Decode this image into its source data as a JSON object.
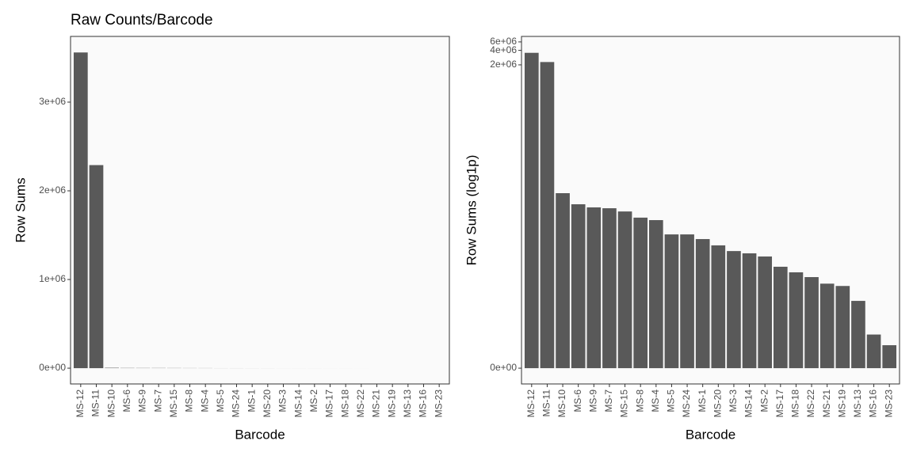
{
  "chart_data": [
    {
      "type": "bar",
      "title": "Raw Counts/Barcode",
      "x_label": "Barcode",
      "y_label": "Row Sums",
      "categories": [
        "MS-12",
        "MS-11",
        "MS-10",
        "MS-6",
        "MS-9",
        "MS-7",
        "MS-15",
        "MS-8",
        "MS-4",
        "MS-5",
        "MS-24",
        "MS-1",
        "MS-20",
        "MS-3",
        "MS-14",
        "MS-2",
        "MS-17",
        "MS-18",
        "MS-22",
        "MS-21",
        "MS-19",
        "MS-13",
        "MS-16",
        "MS-23"
      ],
      "values": [
        3560000,
        2290000,
        4320,
        2540,
        2190,
        2100,
        1800,
        1340,
        1190,
        600,
        600,
        480,
        355,
        270,
        242,
        208,
        127,
        97,
        77,
        56,
        50,
        24,
        4,
        2
      ],
      "color": "#595959",
      "ylim": [
        -178000,
        3741000
      ],
      "yticks": [
        {
          "value": 0,
          "label": "0e+00"
        },
        {
          "value": 1000000,
          "label": "1e+06"
        },
        {
          "value": 2000000,
          "label": "2e+06"
        },
        {
          "value": 3000000,
          "label": "3e+06"
        }
      ],
      "grid": false
    },
    {
      "type": "bar",
      "x_label": "Barcode",
      "y_label": "Row Sums (log1p)",
      "yscale": "log1p",
      "categories": [
        "MS-12",
        "MS-11",
        "MS-10",
        "MS-6",
        "MS-9",
        "MS-7",
        "MS-15",
        "MS-8",
        "MS-4",
        "MS-5",
        "MS-24",
        "MS-1",
        "MS-20",
        "MS-3",
        "MS-14",
        "MS-2",
        "MS-17",
        "MS-18",
        "MS-22",
        "MS-21",
        "MS-19",
        "MS-13",
        "MS-16",
        "MS-23"
      ],
      "values": [
        3560000,
        2290000,
        4320,
        2540,
        2190,
        2100,
        1800,
        1340,
        1190,
        600,
        600,
        480,
        355,
        270,
        242,
        208,
        127,
        97,
        77,
        56,
        50,
        24,
        4,
        2
      ],
      "color": "#595959",
      "ylim": [
        -0.53,
        7800000
      ],
      "yticks": [
        {
          "value": 0,
          "label": "0e+00"
        },
        {
          "value": 2000000,
          "label": "2e+06"
        },
        {
          "value": 4000000,
          "label": "4e+06"
        },
        {
          "value": 6000000,
          "label": "6e+06"
        }
      ],
      "grid": false
    }
  ]
}
